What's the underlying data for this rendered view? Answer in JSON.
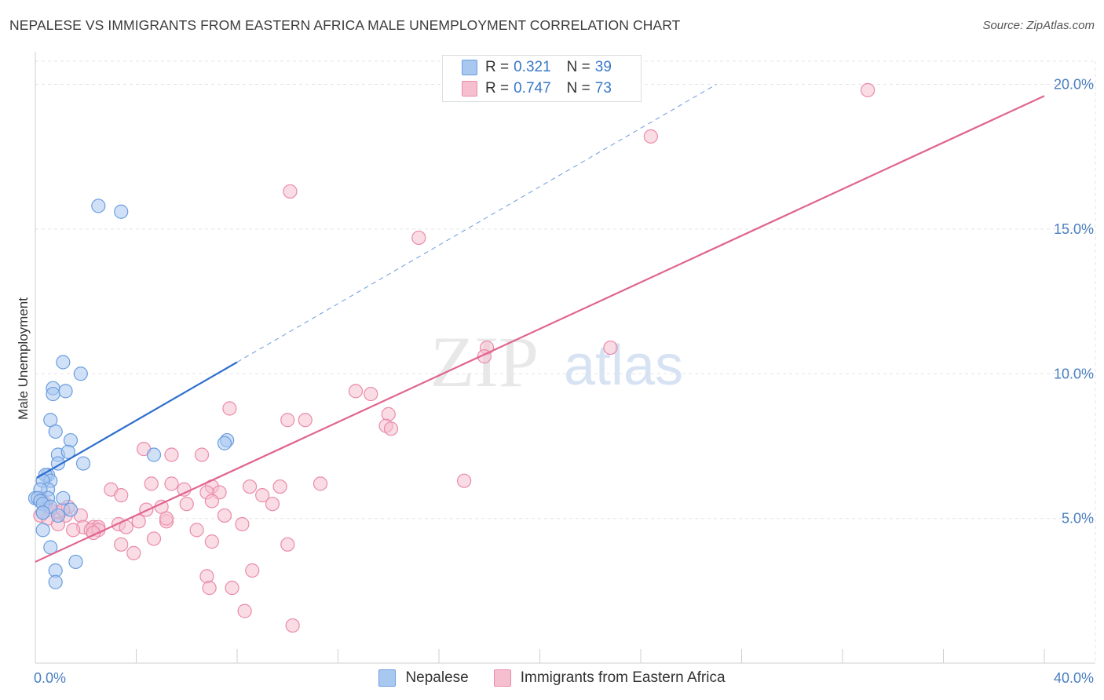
{
  "title": "NEPALESE VS IMMIGRANTS FROM EASTERN AFRICA MALE UNEMPLOYMENT CORRELATION CHART",
  "source": "Source: ZipAtlas.com",
  "watermark": {
    "zip": "ZIP",
    "atlas": "atlas"
  },
  "colors": {
    "nepalese_fill": "#a9c8f0",
    "nepalese_stroke": "#6a9de0",
    "nepalese_line": "#2f6fce",
    "eafrica_fill": "#f6bfd0",
    "eafrica_stroke": "#e98aaa",
    "eafrica_line": "#e0648f",
    "axis_text": "#4a7fc1",
    "grid": "#e4e4e4"
  },
  "legend_top": {
    "rows": [
      {
        "r_label": "R =",
        "r_value": "0.321",
        "n_label": "N =",
        "n_value": "39"
      },
      {
        "r_label": "R =",
        "r_value": "0.747",
        "n_label": "N =",
        "n_value": "73"
      }
    ]
  },
  "legend_bottom": {
    "items": [
      {
        "label": "Nepalese"
      },
      {
        "label": "Immigrants from Eastern Africa"
      }
    ]
  },
  "chart_data": {
    "type": "scatter",
    "ylabel": "Male Unemployment",
    "xlabel": "",
    "xlim": [
      0,
      40
    ],
    "ylim": [
      0,
      20.8
    ],
    "x_tick_labels": [
      {
        "value": 0,
        "label": "0.0%"
      },
      {
        "value": 40,
        "label": "40.0%"
      }
    ],
    "y_tick_labels": [
      {
        "value": 5,
        "label": "5.0%"
      },
      {
        "value": 10,
        "label": "10.0%"
      },
      {
        "value": 15,
        "label": "15.0%"
      },
      {
        "value": 20,
        "label": "20.0%"
      }
    ],
    "grid": true,
    "legend_position": "top-center",
    "series": [
      {
        "name": "Nepalese",
        "r": 0.321,
        "n": 39,
        "trend": {
          "x0": 0.05,
          "y0": 6.4,
          "x1": 8.0,
          "y1": 10.4,
          "dashed_to_x": 27.0,
          "dashed_to_y": 20.0
        },
        "points": [
          [
            2.5,
            15.8
          ],
          [
            3.4,
            15.6
          ],
          [
            1.1,
            10.4
          ],
          [
            1.8,
            10.0
          ],
          [
            0.7,
            9.5
          ],
          [
            1.2,
            9.4
          ],
          [
            0.7,
            9.3
          ],
          [
            0.6,
            8.4
          ],
          [
            0.8,
            8.0
          ],
          [
            1.4,
            7.7
          ],
          [
            7.6,
            7.7
          ],
          [
            7.5,
            7.6
          ],
          [
            4.7,
            7.2
          ],
          [
            0.9,
            7.2
          ],
          [
            1.3,
            7.3
          ],
          [
            0.9,
            6.9
          ],
          [
            1.9,
            6.9
          ],
          [
            0.5,
            6.5
          ],
          [
            0.4,
            6.5
          ],
          [
            0.6,
            6.3
          ],
          [
            0.3,
            6.3
          ],
          [
            0.5,
            6.0
          ],
          [
            0.2,
            6.0
          ],
          [
            0.0,
            5.7
          ],
          [
            0.5,
            5.7
          ],
          [
            1.1,
            5.7
          ],
          [
            0.1,
            5.7
          ],
          [
            0.2,
            5.6
          ],
          [
            0.3,
            5.5
          ],
          [
            0.6,
            5.4
          ],
          [
            1.4,
            5.3
          ],
          [
            0.3,
            5.2
          ],
          [
            0.9,
            5.1
          ],
          [
            0.3,
            4.6
          ],
          [
            0.6,
            4.0
          ],
          [
            1.6,
            3.5
          ],
          [
            0.8,
            3.2
          ],
          [
            0.8,
            2.8
          ],
          [
            0.3,
            5.2
          ]
        ]
      },
      {
        "name": "Immigrants from Eastern Africa",
        "r": 0.747,
        "n": 73,
        "trend": {
          "x0": 0.0,
          "y0": 3.5,
          "x1": 40.0,
          "y1": 19.6
        },
        "points": [
          [
            33.0,
            19.8
          ],
          [
            24.4,
            18.2
          ],
          [
            10.1,
            16.3
          ],
          [
            15.2,
            14.7
          ],
          [
            17.9,
            10.9
          ],
          [
            17.8,
            10.6
          ],
          [
            22.8,
            10.9
          ],
          [
            12.7,
            9.4
          ],
          [
            13.3,
            9.3
          ],
          [
            7.7,
            8.8
          ],
          [
            14.0,
            8.6
          ],
          [
            10.0,
            8.4
          ],
          [
            10.7,
            8.4
          ],
          [
            13.9,
            8.2
          ],
          [
            14.1,
            8.1
          ],
          [
            4.3,
            7.4
          ],
          [
            5.4,
            7.2
          ],
          [
            6.6,
            7.2
          ],
          [
            3.0,
            6.0
          ],
          [
            5.4,
            6.2
          ],
          [
            4.6,
            6.2
          ],
          [
            3.4,
            5.8
          ],
          [
            5.9,
            6.0
          ],
          [
            7.0,
            6.1
          ],
          [
            6.8,
            5.9
          ],
          [
            8.5,
            6.1
          ],
          [
            9.7,
            6.1
          ],
          [
            11.3,
            6.2
          ],
          [
            17.0,
            6.3
          ],
          [
            6.0,
            5.5
          ],
          [
            7.3,
            5.9
          ],
          [
            7.0,
            5.6
          ],
          [
            9.0,
            5.8
          ],
          [
            9.4,
            5.5
          ],
          [
            5.0,
            5.4
          ],
          [
            4.4,
            5.3
          ],
          [
            1.2,
            5.1
          ],
          [
            1.8,
            5.1
          ],
          [
            0.9,
            5.2
          ],
          [
            0.6,
            5.3
          ],
          [
            1.3,
            5.4
          ],
          [
            0.4,
            5.5
          ],
          [
            0.2,
            5.1
          ],
          [
            0.5,
            5.0
          ],
          [
            0.9,
            4.8
          ],
          [
            1.9,
            4.7
          ],
          [
            2.3,
            4.7
          ],
          [
            2.5,
            4.7
          ],
          [
            3.3,
            4.8
          ],
          [
            3.6,
            4.7
          ],
          [
            4.1,
            4.9
          ],
          [
            5.2,
            4.9
          ],
          [
            6.4,
            4.6
          ],
          [
            7.5,
            5.1
          ],
          [
            7.0,
            4.2
          ],
          [
            3.4,
            4.1
          ],
          [
            1.5,
            4.6
          ],
          [
            2.2,
            4.6
          ],
          [
            2.5,
            4.6
          ],
          [
            4.7,
            4.3
          ],
          [
            10.0,
            4.1
          ],
          [
            3.9,
            3.8
          ],
          [
            8.2,
            4.8
          ],
          [
            6.8,
            3.0
          ],
          [
            6.9,
            2.6
          ],
          [
            7.8,
            2.6
          ],
          [
            8.6,
            3.2
          ],
          [
            8.3,
            1.8
          ],
          [
            10.2,
            1.3
          ],
          [
            5.2,
            5.0
          ],
          [
            0.2,
            5.7
          ],
          [
            1.1,
            5.3
          ],
          [
            2.3,
            4.5
          ]
        ]
      }
    ]
  }
}
